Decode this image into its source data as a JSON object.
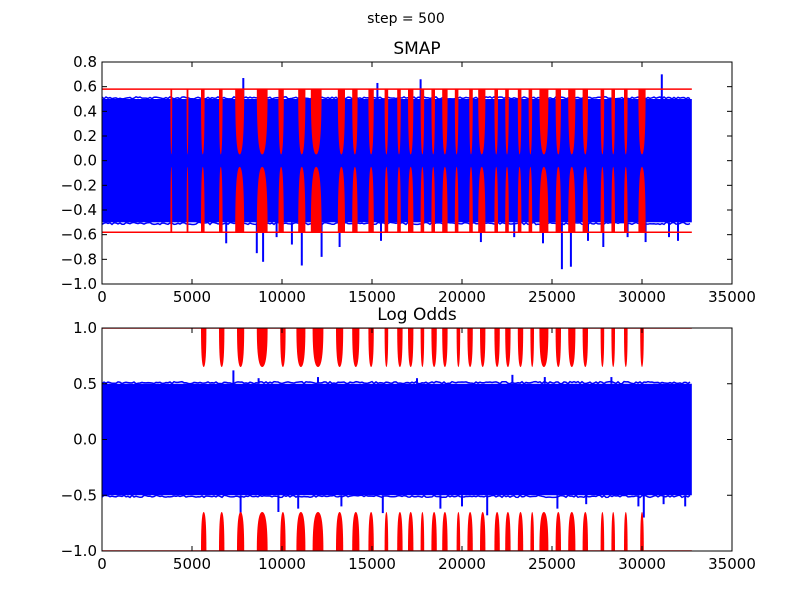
{
  "figure": {
    "suptitle": "step = 500"
  },
  "chart_data": [
    {
      "type": "line",
      "title": "SMAP",
      "xlim": [
        0,
        35000
      ],
      "ylim": [
        -1.0,
        0.8
      ],
      "xticks": [
        0,
        5000,
        10000,
        15000,
        20000,
        25000,
        30000,
        35000
      ],
      "xtick_labels": [
        "0",
        "5000",
        "10000",
        "15000",
        "20000",
        "25000",
        "30000",
        "35000"
      ],
      "yticks": [
        0.8,
        0.6,
        0.4,
        0.2,
        0.0,
        -0.2,
        -0.4,
        -0.6,
        -0.8,
        -1.0
      ],
      "ytick_labels": [
        "0.8",
        "0.6",
        "0.4",
        "0.2",
        "0.0",
        "−0.2",
        "−0.4",
        "−0.6",
        "−0.8",
        "−1.0"
      ],
      "grid": false,
      "series_colors": {
        "signal": "#0000ff",
        "flagged": "#ff0000"
      },
      "signal_band": {
        "x_range": [
          0,
          32768
        ],
        "upper": 0.5,
        "lower": -0.5
      },
      "threshold_lines": [
        0.58,
        -0.58
      ],
      "threshold_x_range": [
        0,
        32768
      ],
      "flagged_segments": [
        [
          3800,
          3900
        ],
        [
          4700,
          4800
        ],
        [
          5500,
          5700
        ],
        [
          6500,
          6700
        ],
        [
          7400,
          7900
        ],
        [
          8600,
          9200
        ],
        [
          9800,
          10100
        ],
        [
          10900,
          11300
        ],
        [
          11600,
          12200
        ],
        [
          13100,
          13500
        ],
        [
          13900,
          14200
        ],
        [
          14800,
          15100
        ],
        [
          15700,
          15900
        ],
        [
          16400,
          16600
        ],
        [
          17000,
          17300
        ],
        [
          17700,
          17900
        ],
        [
          18300,
          18500
        ],
        [
          18900,
          19200
        ],
        [
          19600,
          19800
        ],
        [
          20400,
          20600
        ],
        [
          20900,
          21300
        ],
        [
          21800,
          22000
        ],
        [
          22400,
          22600
        ],
        [
          23100,
          23300
        ],
        [
          23700,
          23900
        ],
        [
          24300,
          24800
        ],
        [
          25200,
          25500
        ],
        [
          25900,
          26300
        ],
        [
          26700,
          27000
        ],
        [
          27700,
          27900
        ],
        [
          28300,
          28500
        ],
        [
          29000,
          29200
        ],
        [
          29800,
          30200
        ]
      ],
      "flagged_peak": 0.58,
      "flagged_floor": 0.05,
      "blue_spikes": [
        [
          6900,
          -0.67
        ],
        [
          7850,
          0.67
        ],
        [
          8600,
          -0.75
        ],
        [
          8950,
          -0.82
        ],
        [
          9700,
          -0.62
        ],
        [
          10550,
          -0.68
        ],
        [
          11100,
          -0.85
        ],
        [
          12200,
          -0.78
        ],
        [
          13200,
          -0.7
        ],
        [
          15300,
          0.63
        ],
        [
          15500,
          -0.65
        ],
        [
          17700,
          0.66
        ],
        [
          21050,
          -0.66
        ],
        [
          22900,
          -0.62
        ],
        [
          24500,
          -0.67
        ],
        [
          25550,
          -0.88
        ],
        [
          26050,
          -0.86
        ],
        [
          27000,
          -0.65
        ],
        [
          27850,
          -0.7
        ],
        [
          29200,
          -0.62
        ],
        [
          30200,
          -0.66
        ],
        [
          31100,
          0.7
        ],
        [
          31500,
          -0.62
        ],
        [
          32000,
          -0.65
        ]
      ]
    },
    {
      "type": "line",
      "title": "Log Odds",
      "xlim": [
        0,
        35000
      ],
      "ylim": [
        -1.0,
        1.0
      ],
      "xticks": [
        0,
        5000,
        10000,
        15000,
        20000,
        25000,
        30000,
        35000
      ],
      "xtick_labels": [
        "0",
        "5000",
        "10000",
        "15000",
        "20000",
        "25000",
        "30000",
        "35000"
      ],
      "yticks": [
        1.0,
        0.5,
        0.0,
        -0.5,
        -1.0
      ],
      "ytick_labels": [
        "1.0",
        "0.5",
        "0.0",
        "−0.5",
        "−1.0"
      ],
      "grid": false,
      "series_colors": {
        "signal": "#0000ff",
        "flagged": "#ff0000"
      },
      "signal_band": {
        "x_range": [
          0,
          32768
        ],
        "upper": 0.5,
        "lower": -0.5
      },
      "threshold_lines": [
        1.0,
        -1.0
      ],
      "threshold_x_range": [
        0,
        32768
      ],
      "flagged_segments": [
        [
          5500,
          5800
        ],
        [
          6500,
          6800
        ],
        [
          7500,
          7900
        ],
        [
          8600,
          9200
        ],
        [
          9900,
          10200
        ],
        [
          10800,
          11300
        ],
        [
          11700,
          12300
        ],
        [
          13000,
          13400
        ],
        [
          13900,
          14300
        ],
        [
          14800,
          15100
        ],
        [
          15700,
          15900
        ],
        [
          16400,
          16700
        ],
        [
          17000,
          17300
        ],
        [
          17700,
          17900
        ],
        [
          18300,
          18600
        ],
        [
          18900,
          19200
        ],
        [
          19700,
          19900
        ],
        [
          20300,
          20600
        ],
        [
          21000,
          21300
        ],
        [
          21800,
          22100
        ],
        [
          22400,
          22700
        ],
        [
          23100,
          23400
        ],
        [
          23800,
          24000
        ],
        [
          24300,
          24800
        ],
        [
          25200,
          25500
        ],
        [
          25900,
          26300
        ],
        [
          26700,
          27000
        ],
        [
          27700,
          27900
        ],
        [
          28300,
          28500
        ],
        [
          29000,
          29200
        ],
        [
          29900,
          30100
        ]
      ],
      "flagged_peak": 1.0,
      "flagged_floor": 0.65,
      "blue_spikes": [
        [
          7300,
          0.62
        ],
        [
          7700,
          -0.7
        ],
        [
          8700,
          0.55
        ],
        [
          9800,
          -0.65
        ],
        [
          10900,
          -0.62
        ],
        [
          12000,
          0.56
        ],
        [
          13300,
          -0.6
        ],
        [
          15600,
          -0.66
        ],
        [
          17500,
          0.55
        ],
        [
          18800,
          -0.62
        ],
        [
          20000,
          -0.6
        ],
        [
          21400,
          -0.68
        ],
        [
          22800,
          0.58
        ],
        [
          24600,
          0.56
        ],
        [
          25300,
          -0.62
        ],
        [
          26900,
          -0.58
        ],
        [
          28300,
          0.56
        ],
        [
          29800,
          -0.6
        ],
        [
          30100,
          -0.7
        ],
        [
          31200,
          -0.58
        ],
        [
          32400,
          -0.6
        ]
      ]
    }
  ]
}
